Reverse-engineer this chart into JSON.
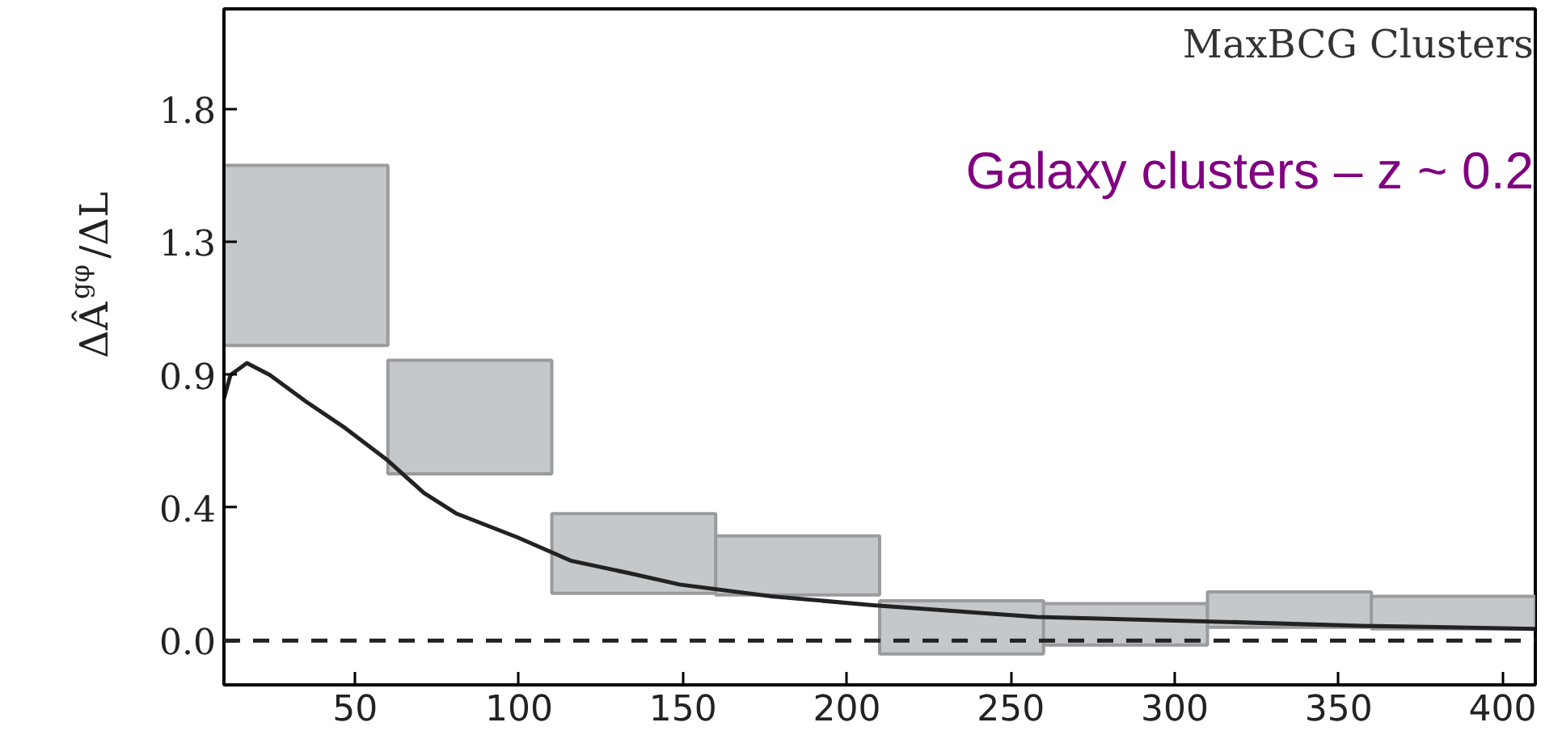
{
  "chart_data": {
    "type": "bar",
    "ylabel": "ΔÂ$^{gφ}$/ΔL",
    "annotations": [
      "MaxBCG Clusters",
      "Galaxy clusters – z ~ 0.2"
    ],
    "xlim": [
      10,
      410
    ],
    "xticks": [
      50,
      100,
      150,
      200,
      250,
      300,
      350,
      400
    ],
    "ylim": [
      -0.15,
      2.14
    ],
    "yticks": [
      {
        "value": 0,
        "label": "0.0"
      },
      {
        "value": 0.45,
        "label": "0.4"
      },
      0.9,
      {
        "value": 1.35,
        "label": "1.3"
      },
      1.8
    ],
    "grid": false,
    "ref_lines": [
      {
        "axis": "y",
        "value": 0,
        "color": "#222222",
        "line_style": "dashed"
      }
    ],
    "series": [
      {
        "color": "#c5c8ca",
        "x": [
          35,
          85,
          135,
          185,
          235,
          285,
          335,
          385
        ],
        "base": [
          1.0,
          0.565,
          0.16,
          0.155,
          -0.045,
          -0.015,
          0.045,
          0.04
        ],
        "values": [
          0.61,
          0.385,
          0.27,
          0.2,
          0.18,
          0.14,
          0.12,
          0.11
        ]
      },
      {
        "type": "line",
        "color": "#222222",
        "x": [
          10,
          12,
          17,
          24,
          35,
          47,
          60,
          71,
          81,
          99.5,
          116,
          133,
          149,
          177,
          208,
          258,
          307,
          357,
          410
        ],
        "values": [
          0.82,
          0.9,
          0.94,
          0.9,
          0.81,
          0.72,
          0.61,
          0.5,
          0.43,
          0.35,
          0.27,
          0.23,
          0.19,
          0.15,
          0.12,
          0.08,
          0.066,
          0.05,
          0.04
        ]
      }
    ]
  }
}
